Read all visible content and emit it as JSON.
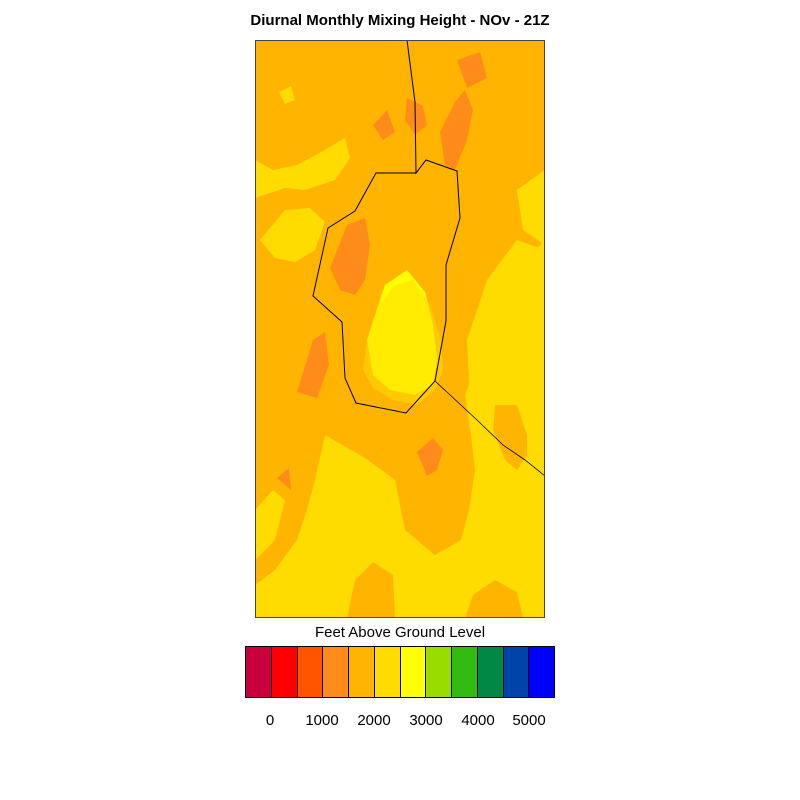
{
  "title": "Diurnal Monthly Mixing Height - NOv - 21Z",
  "legend": {
    "title": "Feet Above Ground Level",
    "colors": [
      "#c8003c",
      "#ff0000",
      "#ff5500",
      "#ff8c1a",
      "#ffb400",
      "#ffdc00",
      "#ffff00",
      "#99dd00",
      "#33bb11",
      "#008844",
      "#0044aa",
      "#0000ff"
    ],
    "tick_labels": [
      "0",
      "1000",
      "2000",
      "3000",
      "4000",
      "5000"
    ]
  },
  "map": {
    "palette": {
      "light": "#ffdc00",
      "mid": "#ffb400",
      "dark": "#ff8c1a",
      "peak": "#ffff00"
    }
  }
}
